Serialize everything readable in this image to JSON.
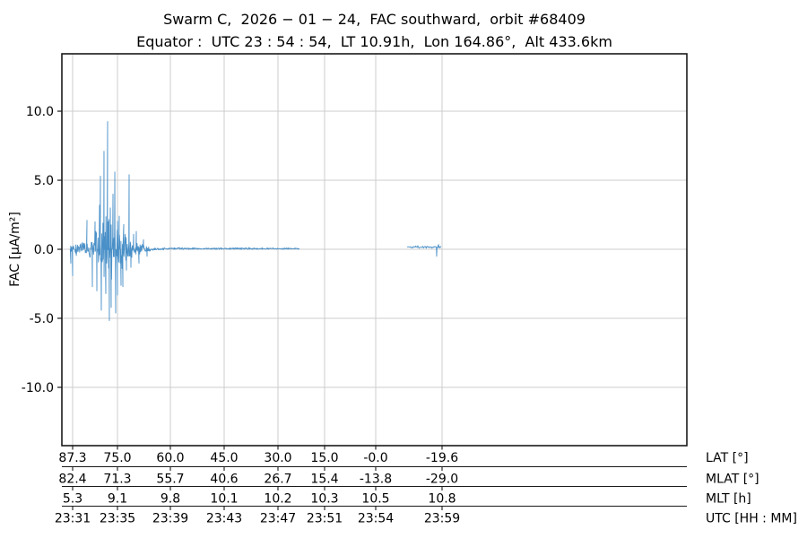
{
  "colors": {
    "background": "#ffffff",
    "grid": "#cccccc",
    "spine": "#1a1a1a",
    "text": "#000000",
    "trace": "#4a90c8"
  },
  "chart_data": {
    "type": "line",
    "title": "Swarm C,  2026 − 01 − 24,  FAC southward,  orbit #68409",
    "subtitle": "Equator :  UTC 23 : 54 : 54,  LT 10.91h,  Lon 164.86°,  Alt 433.6km",
    "ylabel": "FAC [µA/m²]",
    "grid": true,
    "legend": "none",
    "ylim": [
      -14.2,
      14.15
    ],
    "yticks": {
      "labels": [
        "10.0",
        "5.0",
        "0.0",
        "-5.0",
        "-10.0"
      ],
      "values": [
        10.0,
        5.0,
        0.0,
        -5.0,
        -10.0
      ],
      "fracs": [
        0.1465,
        0.3227,
        0.4989,
        0.675,
        0.8512
      ]
    },
    "xticks": {
      "fracs": [
        0.0172,
        0.0889,
        0.1736,
        0.2597,
        0.3458,
        0.4204,
        0.5022,
        0.6083
      ]
    },
    "bottom_rows": [
      {
        "label": "LAT [°]",
        "values": [
          "87.3",
          "75.0",
          "60.0",
          "45.0",
          "30.0",
          "15.0",
          "-0.0",
          "-19.6"
        ]
      },
      {
        "label": "MLAT [°]",
        "values": [
          "82.4",
          "71.3",
          "55.7",
          "40.6",
          "26.7",
          "15.4",
          "-13.8",
          "-29.0"
        ]
      },
      {
        "label": "MLT [h]",
        "values": [
          "5.3",
          "9.1",
          "9.8",
          "10.1",
          "10.2",
          "10.3",
          "10.5",
          "10.8"
        ]
      },
      {
        "label": "UTC [HH : MM]",
        "values": [
          "23:31",
          "23:35",
          "23:39",
          "23:43",
          "23:47",
          "23:51",
          "23:54",
          "23:59"
        ]
      }
    ],
    "waveform": {
      "units": "µA/m²",
      "color": "#4a90c8",
      "stroke_width": 0.9,
      "seed": 9,
      "peak_value": 9.25,
      "min_value": -5.15,
      "segments": [
        {
          "x_start": 0.0129,
          "x_end": 0.3802,
          "step": 0.0006,
          "mean": [
            [
              0.0129,
              0.0
            ],
            [
              0.15,
              0.0
            ],
            [
              0.17,
              0.06
            ],
            [
              0.3802,
              0.05
            ]
          ],
          "envelope": [
            [
              0.0129,
              0.5
            ],
            [
              0.0301,
              0.55
            ],
            [
              0.0445,
              0.7
            ],
            [
              0.0502,
              1.0
            ],
            [
              0.056,
              1.6
            ],
            [
              0.0617,
              2.0
            ],
            [
              0.0674,
              2.4
            ],
            [
              0.076,
              2.5
            ],
            [
              0.0847,
              2.3
            ],
            [
              0.0904,
              1.9
            ],
            [
              0.0961,
              1.5
            ],
            [
              0.1019,
              1.1
            ],
            [
              0.109,
              0.85
            ],
            [
              0.1162,
              0.6
            ],
            [
              0.1248,
              0.42
            ],
            [
              0.1334,
              0.25
            ],
            [
              0.142,
              0.14
            ],
            [
              0.1535,
              0.09
            ],
            [
              0.1736,
              0.07
            ],
            [
              0.231,
              0.06
            ],
            [
              0.3027,
              0.08
            ],
            [
              0.3458,
              0.06
            ],
            [
              0.3802,
              0.05
            ]
          ]
        },
        {
          "x_start": 0.5524,
          "x_end": 0.6069,
          "step": 0.0009,
          "mean": [
            [
              0.5524,
              0.18
            ],
            [
              0.6069,
              0.15
            ]
          ],
          "envelope": [
            [
              0.5524,
              0.09
            ],
            [
              0.6069,
              0.09
            ]
          ]
        }
      ],
      "spikes": [
        [
          0.0143,
          -1.0
        ],
        [
          0.0172,
          -1.9
        ],
        [
          0.0402,
          2.1
        ],
        [
          0.0488,
          -2.7
        ],
        [
          0.0531,
          2.0
        ],
        [
          0.056,
          -3.0
        ],
        [
          0.0603,
          3.2
        ],
        [
          0.0617,
          5.3
        ],
        [
          0.0631,
          -4.4
        ],
        [
          0.0674,
          7.1
        ],
        [
          0.0703,
          -3.2
        ],
        [
          0.0732,
          9.25
        ],
        [
          0.076,
          -5.15
        ],
        [
          0.0775,
          3.0
        ],
        [
          0.0789,
          -4.2
        ],
        [
          0.0818,
          4.0
        ],
        [
          0.0847,
          5.6
        ],
        [
          0.0861,
          -4.6
        ],
        [
          0.089,
          -3.3
        ],
        [
          0.0918,
          2.4
        ],
        [
          0.0947,
          -2.6
        ],
        [
          0.0976,
          -2.7
        ],
        [
          0.099,
          1.8
        ],
        [
          0.1033,
          -1.5
        ],
        [
          0.1076,
          5.4
        ],
        [
          0.1105,
          -1.3
        ],
        [
          0.1148,
          1.1
        ],
        [
          0.1191,
          1.3
        ],
        [
          0.1234,
          -1.0
        ],
        [
          0.1306,
          0.7
        ],
        [
          0.1363,
          -0.5
        ],
        [
          0.5997,
          -0.5
        ],
        [
          0.6026,
          0.35
        ]
      ]
    }
  }
}
